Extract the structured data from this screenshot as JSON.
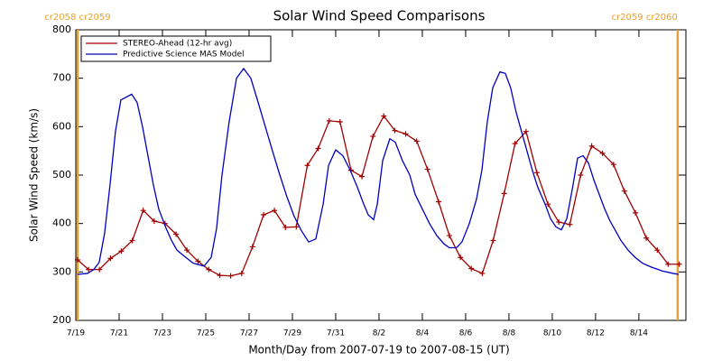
{
  "chart_data": {
    "type": "line",
    "title": "Solar Wind Speed Comparisons",
    "xlabel": "Month/Day from 2007-07-19 to 2007-08-15 (UT)",
    "ylabel": "Solar Wind Speed (km/s)",
    "xlim": [
      0,
      28.17
    ],
    "ylim": [
      200,
      800
    ],
    "yticks": [
      200,
      300,
      400,
      500,
      600,
      700,
      800
    ],
    "xticks": [
      {
        "value": 0,
        "label": "7/19"
      },
      {
        "value": 2,
        "label": "7/21"
      },
      {
        "value": 4,
        "label": "7/23"
      },
      {
        "value": 6,
        "label": "7/25"
      },
      {
        "value": 8,
        "label": "7/27"
      },
      {
        "value": 10,
        "label": "7/29"
      },
      {
        "value": 12,
        "label": "7/31"
      },
      {
        "value": 14,
        "label": "8/2"
      },
      {
        "value": 16,
        "label": "8/4"
      },
      {
        "value": 18,
        "label": "8/6"
      },
      {
        "value": 20,
        "label": "8/8"
      },
      {
        "value": 22,
        "label": "8/10"
      },
      {
        "value": 24,
        "label": "8/12"
      },
      {
        "value": 26,
        "label": "8/14"
      }
    ],
    "legend": "upper left",
    "markers": [
      {
        "x": 0.08,
        "label": "cr2058 cr2059",
        "color": "#e8a030"
      },
      {
        "x": 27.79,
        "label": "cr2059 cr2060",
        "color": "#e8a030"
      }
    ],
    "series": [
      {
        "name": "STEREO-Ahead (12-hr avg)",
        "color": "#a00000",
        "marker": "+",
        "x": [
          0.08,
          0.59,
          1.09,
          1.6,
          2.1,
          2.61,
          3.11,
          3.62,
          4.12,
          4.63,
          5.13,
          5.64,
          6.14,
          6.65,
          7.15,
          7.66,
          8.16,
          8.67,
          9.17,
          9.68,
          10.18,
          10.69,
          11.19,
          11.7,
          12.2,
          12.71,
          13.21,
          13.72,
          14.22,
          14.73,
          15.23,
          15.74,
          16.24,
          16.75,
          17.25,
          17.76,
          18.26,
          18.77,
          19.27,
          19.78,
          20.28,
          20.79,
          21.29,
          21.8,
          22.3,
          22.81,
          23.31,
          23.82,
          24.32,
          24.83,
          25.33,
          25.84,
          26.34,
          26.85,
          27.35,
          27.86
        ],
        "values": [
          325,
          305,
          305,
          328,
          343,
          365,
          427,
          405,
          400,
          378,
          345,
          322,
          305,
          293,
          292,
          297,
          352,
          418,
          427,
          392,
          393,
          520,
          555,
          612,
          610,
          510,
          497,
          580,
          622,
          592,
          585,
          570,
          512,
          445,
          375,
          330,
          307,
          297,
          365,
          462,
          565,
          590,
          505,
          440,
          403,
          398,
          500,
          560,
          545,
          522,
          467,
          422,
          370,
          345,
          316,
          316
        ]
      },
      {
        "name": "Predictive Science MAS Model",
        "color": "#0000c0",
        "x": [
          0.08,
          0.54,
          0.83,
          1.08,
          1.33,
          1.58,
          1.83,
          2.08,
          2.58,
          2.83,
          3.08,
          3.33,
          3.58,
          3.83,
          4.17,
          4.42,
          4.67,
          5.08,
          5.42,
          5.92,
          6.25,
          6.5,
          6.75,
          7.08,
          7.42,
          7.75,
          8.08,
          8.42,
          8.75,
          9.08,
          9.42,
          9.75,
          10.08,
          10.42,
          10.75,
          11.08,
          11.42,
          11.67,
          12,
          12.33,
          12.67,
          13,
          13.25,
          13.5,
          13.75,
          13.92,
          14.17,
          14.5,
          14.75,
          15.08,
          15.42,
          15.67,
          16,
          16.33,
          16.67,
          17,
          17.25,
          17.58,
          17.83,
          18.17,
          18.5,
          18.75,
          19,
          19.25,
          19.58,
          19.83,
          20.08,
          20.33,
          20.58,
          20.83,
          21.08,
          21.33,
          21.67,
          21.92,
          22.17,
          22.42,
          22.67,
          22.92,
          23.17,
          23.42,
          23.67,
          23.92,
          24.17,
          24.42,
          24.67,
          24.92,
          25.17,
          25.5,
          25.83,
          26.17,
          26.58,
          27.08,
          27.58,
          27.83
        ],
        "values": [
          295,
          297,
          305,
          320,
          380,
          480,
          590,
          655,
          667,
          650,
          600,
          540,
          480,
          430,
          390,
          365,
          345,
          330,
          318,
          312,
          330,
          390,
          500,
          610,
          700,
          720,
          700,
          650,
          600,
          550,
          500,
          455,
          415,
          385,
          362,
          368,
          440,
          520,
          552,
          540,
          510,
          475,
          445,
          418,
          408,
          440,
          530,
          575,
          568,
          530,
          500,
          460,
          430,
          400,
          375,
          358,
          350,
          350,
          362,
          400,
          450,
          510,
          610,
          680,
          713,
          710,
          680,
          630,
          590,
          550,
          510,
          475,
          440,
          410,
          393,
          387,
          410,
          470,
          535,
          540,
          525,
          490,
          460,
          430,
          405,
          385,
          365,
          345,
          330,
          318,
          310,
          302,
          297,
          295
        ]
      }
    ]
  }
}
